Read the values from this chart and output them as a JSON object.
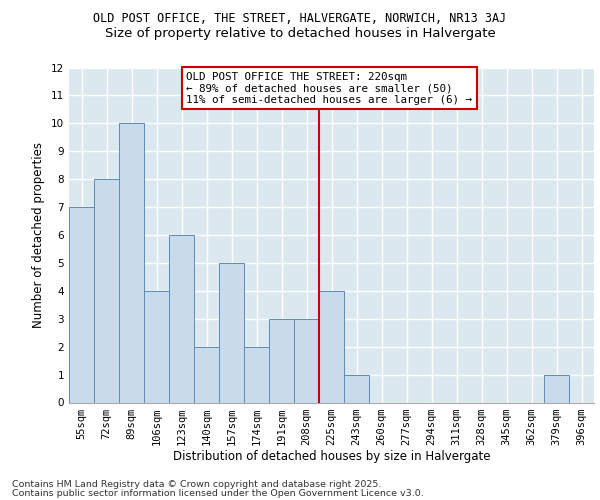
{
  "title1": "OLD POST OFFICE, THE STREET, HALVERGATE, NORWICH, NR13 3AJ",
  "title2": "Size of property relative to detached houses in Halvergate",
  "xlabel": "Distribution of detached houses by size in Halvergate",
  "ylabel": "Number of detached properties",
  "categories": [
    "55sqm",
    "72sqm",
    "89sqm",
    "106sqm",
    "123sqm",
    "140sqm",
    "157sqm",
    "174sqm",
    "191sqm",
    "208sqm",
    "225sqm",
    "243sqm",
    "260sqm",
    "277sqm",
    "294sqm",
    "311sqm",
    "328sqm",
    "345sqm",
    "362sqm",
    "379sqm",
    "396sqm"
  ],
  "values": [
    7,
    8,
    10,
    4,
    6,
    2,
    5,
    2,
    3,
    3,
    4,
    1,
    0,
    0,
    0,
    0,
    0,
    0,
    0,
    1,
    0
  ],
  "bar_color": "#c9daea",
  "bar_edge_color": "#5b8db8",
  "background_color": "#dce8f0",
  "grid_color": "#ffffff",
  "fig_background": "#ffffff",
  "vline_x": 9.5,
  "vline_color": "#cc0000",
  "annotation_text": "OLD POST OFFICE THE STREET: 220sqm\n← 89% of detached houses are smaller (50)\n11% of semi-detached houses are larger (6) →",
  "annotation_box_color": "#ffffff",
  "annotation_box_edge": "#cc0000",
  "ylim": [
    0,
    12
  ],
  "yticks": [
    0,
    1,
    2,
    3,
    4,
    5,
    6,
    7,
    8,
    9,
    10,
    11,
    12
  ],
  "footer1": "Contains HM Land Registry data © Crown copyright and database right 2025.",
  "footer2": "Contains public sector information licensed under the Open Government Licence v3.0.",
  "title1_fontsize": 8.5,
  "title2_fontsize": 9.5,
  "axis_label_fontsize": 8.5,
  "tick_fontsize": 7.5,
  "annotation_fontsize": 7.8,
  "footer_fontsize": 6.8
}
